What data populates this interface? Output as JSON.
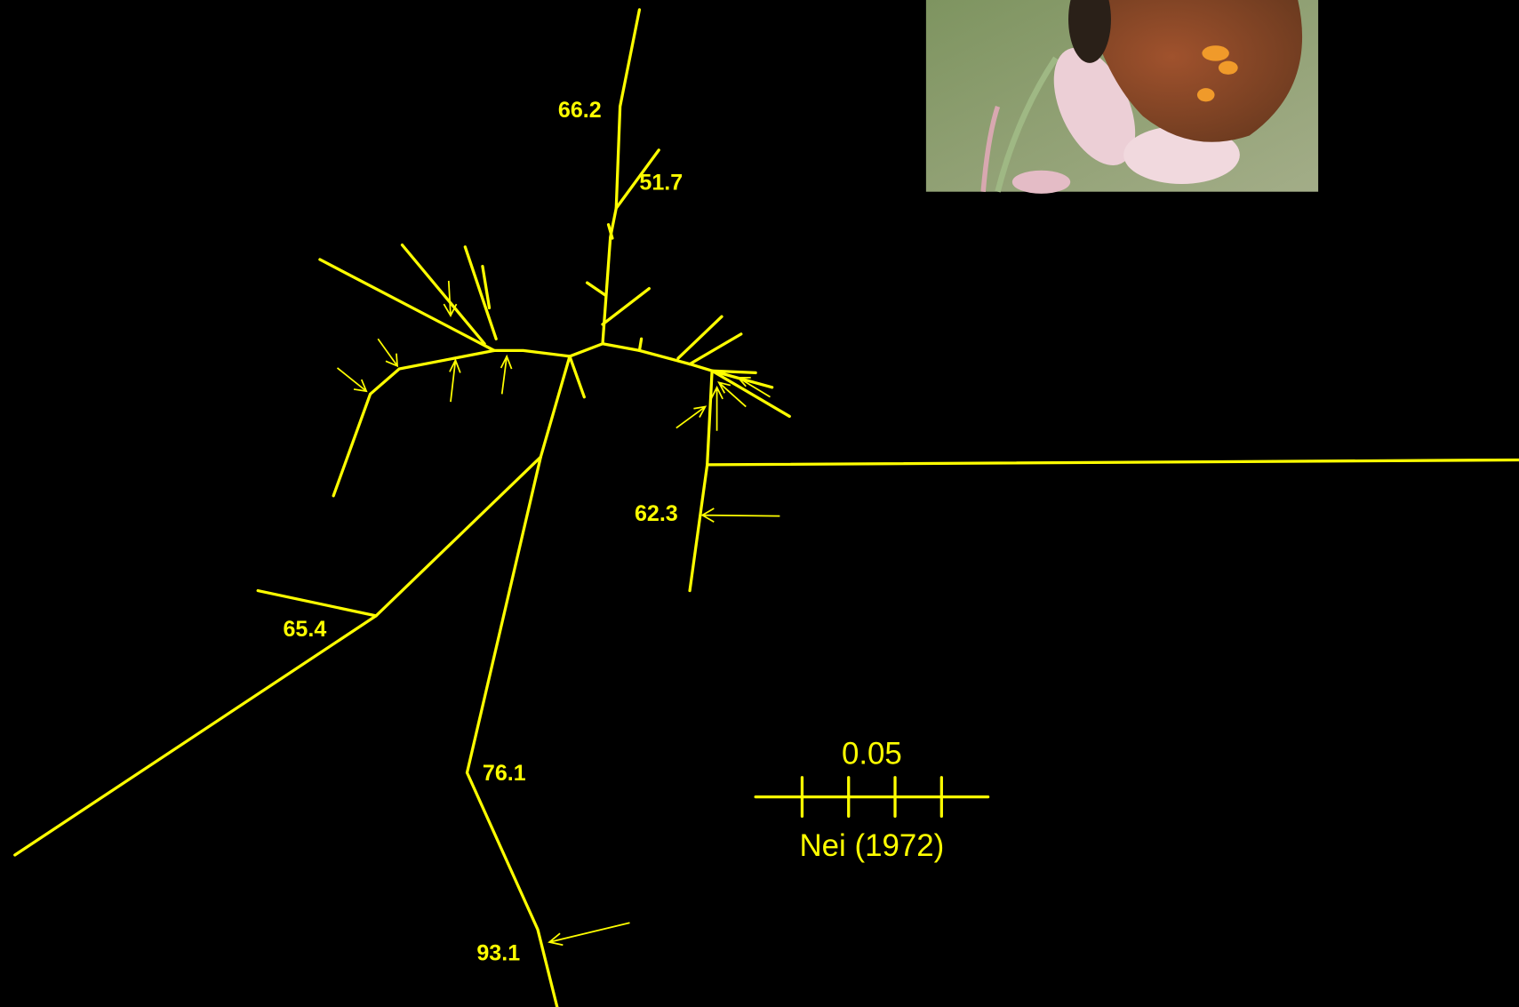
{
  "tree": {
    "support_labels": [
      "66.2",
      "51.7",
      "62.3",
      "65.4",
      "76.1",
      "93.1"
    ]
  },
  "scale_bar": {
    "length": "0.05",
    "measure": "Nei (1972)"
  }
}
